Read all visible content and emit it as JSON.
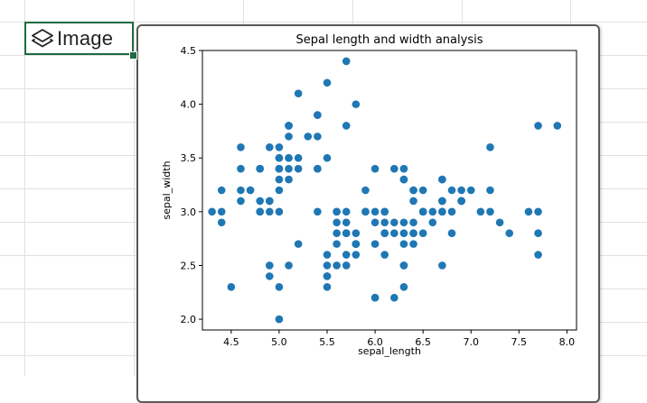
{
  "cell": {
    "icon": "layers-icon",
    "text": "Image"
  },
  "chart_data": {
    "type": "scatter",
    "title": "Sepal length and width analysis",
    "xlabel": "sepal_length",
    "ylabel": "sepal_width",
    "xlim": [
      4.2,
      8.1
    ],
    "ylim": [
      1.9,
      4.5
    ],
    "xticks": [
      "4.5",
      "5.0",
      "5.5",
      "6.0",
      "6.5",
      "7.0",
      "7.5",
      "8.0"
    ],
    "yticks": [
      "2.0",
      "2.5",
      "3.0",
      "3.5",
      "4.0",
      "4.5"
    ],
    "grid": false,
    "marker_color": "#1f77b4",
    "points": [
      [
        5.1,
        3.5
      ],
      [
        4.9,
        3.0
      ],
      [
        4.7,
        3.2
      ],
      [
        4.6,
        3.1
      ],
      [
        5.0,
        3.6
      ],
      [
        5.4,
        3.9
      ],
      [
        4.6,
        3.4
      ],
      [
        5.0,
        3.4
      ],
      [
        4.4,
        2.9
      ],
      [
        4.9,
        3.1
      ],
      [
        5.4,
        3.7
      ],
      [
        4.8,
        3.4
      ],
      [
        4.8,
        3.0
      ],
      [
        4.3,
        3.0
      ],
      [
        5.8,
        4.0
      ],
      [
        5.7,
        4.4
      ],
      [
        5.4,
        3.9
      ],
      [
        5.1,
        3.5
      ],
      [
        5.7,
        3.8
      ],
      [
        5.1,
        3.8
      ],
      [
        5.4,
        3.4
      ],
      [
        5.1,
        3.7
      ],
      [
        4.6,
        3.6
      ],
      [
        5.1,
        3.3
      ],
      [
        4.8,
        3.4
      ],
      [
        5.0,
        3.0
      ],
      [
        5.0,
        3.4
      ],
      [
        5.2,
        3.5
      ],
      [
        5.2,
        3.4
      ],
      [
        4.7,
        3.2
      ],
      [
        4.8,
        3.1
      ],
      [
        5.4,
        3.4
      ],
      [
        5.2,
        4.1
      ],
      [
        5.5,
        4.2
      ],
      [
        4.9,
        3.1
      ],
      [
        5.0,
        3.2
      ],
      [
        5.5,
        3.5
      ],
      [
        4.9,
        3.6
      ],
      [
        4.4,
        3.0
      ],
      [
        5.1,
        3.4
      ],
      [
        5.0,
        3.5
      ],
      [
        4.5,
        2.3
      ],
      [
        4.4,
        3.2
      ],
      [
        5.0,
        3.5
      ],
      [
        5.1,
        3.8
      ],
      [
        4.8,
        3.0
      ],
      [
        5.1,
        3.8
      ],
      [
        4.6,
        3.2
      ],
      [
        5.3,
        3.7
      ],
      [
        5.0,
        3.3
      ],
      [
        7.0,
        3.2
      ],
      [
        6.4,
        3.2
      ],
      [
        6.9,
        3.1
      ],
      [
        5.5,
        2.3
      ],
      [
        6.5,
        2.8
      ],
      [
        5.7,
        2.8
      ],
      [
        6.3,
        3.3
      ],
      [
        4.9,
        2.4
      ],
      [
        6.6,
        2.9
      ],
      [
        5.2,
        2.7
      ],
      [
        5.0,
        2.0
      ],
      [
        5.9,
        3.0
      ],
      [
        6.0,
        2.2
      ],
      [
        6.1,
        2.9
      ],
      [
        5.6,
        2.9
      ],
      [
        6.7,
        3.1
      ],
      [
        5.6,
        3.0
      ],
      [
        5.8,
        2.7
      ],
      [
        6.2,
        2.2
      ],
      [
        5.6,
        2.5
      ],
      [
        5.9,
        3.2
      ],
      [
        6.1,
        2.8
      ],
      [
        6.3,
        2.5
      ],
      [
        6.1,
        2.8
      ],
      [
        6.4,
        2.9
      ],
      [
        6.6,
        3.0
      ],
      [
        6.8,
        2.8
      ],
      [
        6.7,
        3.0
      ],
      [
        6.0,
        2.9
      ],
      [
        5.7,
        2.6
      ],
      [
        5.5,
        2.4
      ],
      [
        5.5,
        2.4
      ],
      [
        5.8,
        2.7
      ],
      [
        6.0,
        2.7
      ],
      [
        5.4,
        3.0
      ],
      [
        6.0,
        3.4
      ],
      [
        6.7,
        3.1
      ],
      [
        6.3,
        2.3
      ],
      [
        5.6,
        3.0
      ],
      [
        5.5,
        2.5
      ],
      [
        5.5,
        2.6
      ],
      [
        6.1,
        3.0
      ],
      [
        5.8,
        2.6
      ],
      [
        5.0,
        2.3
      ],
      [
        5.6,
        2.7
      ],
      [
        5.7,
        3.0
      ],
      [
        5.7,
        2.9
      ],
      [
        6.2,
        2.9
      ],
      [
        5.1,
        2.5
      ],
      [
        5.7,
        2.8
      ],
      [
        6.3,
        3.3
      ],
      [
        5.8,
        2.7
      ],
      [
        7.1,
        3.0
      ],
      [
        6.3,
        2.9
      ],
      [
        6.5,
        3.0
      ],
      [
        7.6,
        3.0
      ],
      [
        4.9,
        2.5
      ],
      [
        7.3,
        2.9
      ],
      [
        6.7,
        2.5
      ],
      [
        7.2,
        3.6
      ],
      [
        6.5,
        3.2
      ],
      [
        6.4,
        2.7
      ],
      [
        6.8,
        3.0
      ],
      [
        5.7,
        2.5
      ],
      [
        5.8,
        2.8
      ],
      [
        6.4,
        3.2
      ],
      [
        6.5,
        3.0
      ],
      [
        7.7,
        3.8
      ],
      [
        7.7,
        2.6
      ],
      [
        6.0,
        2.2
      ],
      [
        6.9,
        3.2
      ],
      [
        5.6,
        2.8
      ],
      [
        7.7,
        2.8
      ],
      [
        6.3,
        2.7
      ],
      [
        6.7,
        3.3
      ],
      [
        7.2,
        3.2
      ],
      [
        6.2,
        2.8
      ],
      [
        6.1,
        3.0
      ],
      [
        6.4,
        2.8
      ],
      [
        7.2,
        3.0
      ],
      [
        7.4,
        2.8
      ],
      [
        7.9,
        3.8
      ],
      [
        6.4,
        2.8
      ],
      [
        6.3,
        2.8
      ],
      [
        6.1,
        2.6
      ],
      [
        7.7,
        3.0
      ],
      [
        6.3,
        3.4
      ],
      [
        6.4,
        3.1
      ],
      [
        6.0,
        3.0
      ],
      [
        6.9,
        3.1
      ],
      [
        6.7,
        3.1
      ],
      [
        6.9,
        3.1
      ],
      [
        5.8,
        2.7
      ],
      [
        6.8,
        3.2
      ],
      [
        6.7,
        3.3
      ],
      [
        6.7,
        3.0
      ],
      [
        6.3,
        2.5
      ],
      [
        6.5,
        3.0
      ],
      [
        6.2,
        3.4
      ],
      [
        5.9,
        3.0
      ]
    ]
  }
}
